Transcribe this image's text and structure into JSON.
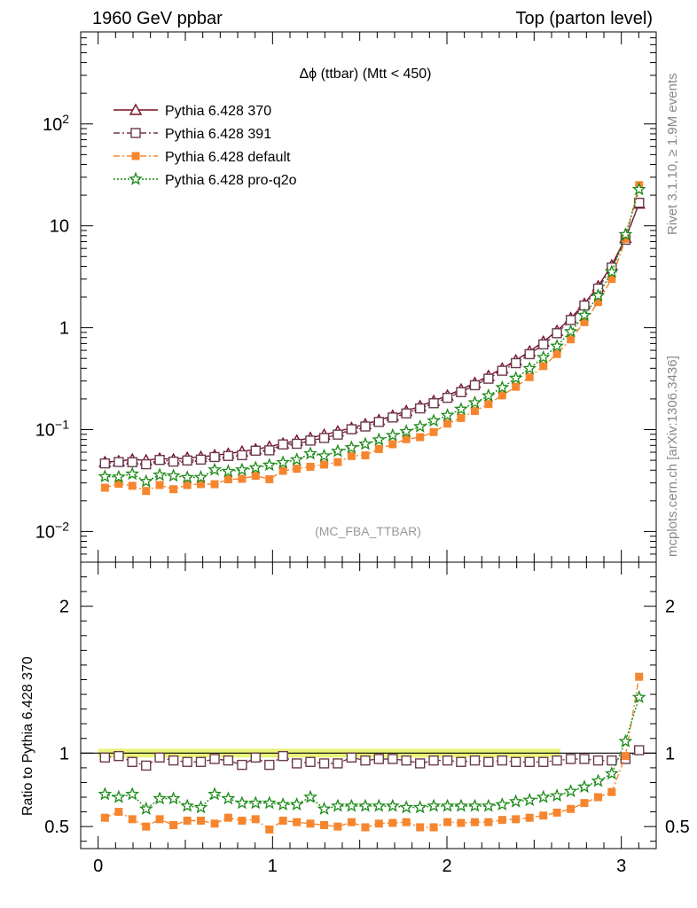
{
  "header": {
    "left": "1960 GeV ppbar",
    "right": "Top (parton level)"
  },
  "side_labels": {
    "rivet": "Rivet 3.1.10, ≥ 1.9M events",
    "mcplots": "mcplots.cern.ch [arXiv:1306.3436]"
  },
  "chart_data": [
    {
      "type": "line",
      "title": "Δϕ (ttbar) (Mtt < 450)",
      "watermark": "(MC_FBA_TTBAR)",
      "yscale": "log",
      "xlim": [
        -0.1,
        3.2
      ],
      "ylim": [
        0.005,
        800
      ],
      "y_tick_labels": [
        "10^-2",
        "10^-1",
        "1",
        "10",
        "10^2"
      ],
      "x": [
        0.039,
        0.118,
        0.196,
        0.275,
        0.353,
        0.432,
        0.511,
        0.589,
        0.668,
        0.746,
        0.825,
        0.903,
        0.982,
        1.06,
        1.139,
        1.217,
        1.296,
        1.374,
        1.453,
        1.532,
        1.61,
        1.689,
        1.767,
        1.846,
        1.924,
        2.003,
        2.081,
        2.16,
        2.238,
        2.317,
        2.395,
        2.474,
        2.553,
        2.631,
        2.71,
        2.788,
        2.867,
        2.945,
        3.024,
        3.102
      ],
      "series": [
        {
          "name": "Pythia 6.428 370",
          "color": "#7a0d24",
          "marker": "open-triangle",
          "line": "solid",
          "values": [
            0.048,
            0.049,
            0.051,
            0.05,
            0.052,
            0.051,
            0.053,
            0.054,
            0.056,
            0.058,
            0.061,
            0.064,
            0.068,
            0.073,
            0.078,
            0.083,
            0.089,
            0.096,
            0.104,
            0.113,
            0.124,
            0.137,
            0.152,
            0.17,
            0.191,
            0.216,
            0.248,
            0.287,
            0.336,
            0.398,
            0.478,
            0.585,
            0.73,
            0.93,
            1.24,
            1.72,
            2.55,
            4.1,
            7.6,
            16.5
          ]
        },
        {
          "name": "Pythia 6.428 391",
          "color": "#6b3a4f",
          "marker": "open-square",
          "line": "dashdot",
          "values": [
            0.0466,
            0.0481,
            0.0479,
            0.0457,
            0.0504,
            0.0485,
            0.0498,
            0.0508,
            0.0538,
            0.0551,
            0.0561,
            0.0621,
            0.0626,
            0.0716,
            0.0726,
            0.078,
            0.0828,
            0.0893,
            0.1009,
            0.1073,
            0.119,
            0.1315,
            0.1443,
            0.1615,
            0.1815,
            0.2052,
            0.2331,
            0.2727,
            0.3158,
            0.3781,
            0.4493,
            0.5499,
            0.6862,
            0.8835,
            1.1904,
            1.6512,
            2.4225,
            3.895,
            7.3,
            16.83
          ]
        },
        {
          "name": "Pythia 6.428 default",
          "color": "#f5862f",
          "marker": "filled-square",
          "line": "dashdot",
          "values": [
            0.0269,
            0.0294,
            0.0281,
            0.025,
            0.0286,
            0.026,
            0.0286,
            0.0292,
            0.0291,
            0.0325,
            0.0329,
            0.0352,
            0.0326,
            0.0394,
            0.0413,
            0.0432,
            0.0454,
            0.048,
            0.0551,
            0.0559,
            0.0645,
            0.0719,
            0.0806,
            0.0843,
            0.0946,
            0.1145,
            0.1302,
            0.1521,
            0.1781,
            0.2169,
            0.2636,
            0.3276,
            0.4205,
            0.552,
            0.7688,
            1.1352,
            1.785,
            3.0135,
            7.448,
            25.08
          ]
        },
        {
          "name": "Pythia 6.428 pro-q2o",
          "color": "#1b8a16",
          "marker": "open-star",
          "line": "dotted",
          "values": [
            0.0346,
            0.0343,
            0.0367,
            0.031,
            0.0359,
            0.0352,
            0.0339,
            0.034,
            0.0403,
            0.0389,
            0.0403,
            0.0422,
            0.0449,
            0.0475,
            0.0507,
            0.0581,
            0.0552,
            0.0614,
            0.0666,
            0.0722,
            0.0794,
            0.0877,
            0.0958,
            0.1071,
            0.1222,
            0.1382,
            0.1587,
            0.1837,
            0.215,
            0.2587,
            0.3202,
            0.3978,
            0.511,
            0.6603,
            0.9176,
            1.3244,
            2.0655,
            3.526,
            8.208,
            22.77
          ]
        }
      ]
    },
    {
      "type": "line",
      "ylabel": "Ratio to Pythia 6.428 370",
      "xlim": [
        -0.1,
        3.2
      ],
      "ylim": [
        0.35,
        2.3
      ],
      "x_tick_labels": [
        "0",
        "1",
        "2",
        "3"
      ],
      "y_tick_labels": [
        "0.5",
        "1",
        "2"
      ],
      "reference_band": {
        "name": "Pythia 6.428 370",
        "low": 0.97,
        "high": 1.03,
        "color": "#e8f57a"
      },
      "series": [
        {
          "name": "Pythia 6.428 391",
          "color": "#6b3a4f",
          "marker": "open-square",
          "line": "dashdot",
          "values": [
            0.97,
            0.98,
            0.94,
            0.915,
            0.97,
            0.95,
            0.94,
            0.94,
            0.96,
            0.95,
            0.92,
            0.97,
            0.92,
            0.98,
            0.93,
            0.94,
            0.93,
            0.93,
            0.97,
            0.95,
            0.96,
            0.96,
            0.95,
            0.93,
            0.95,
            0.95,
            0.94,
            0.95,
            0.94,
            0.95,
            0.94,
            0.94,
            0.94,
            0.95,
            0.96,
            0.96,
            0.95,
            0.95,
            0.96,
            1.02
          ]
        },
        {
          "name": "Pythia 6.428 default",
          "color": "#f5862f",
          "marker": "filled-square",
          "line": "dashdot",
          "values": [
            0.56,
            0.6,
            0.55,
            0.5,
            0.55,
            0.51,
            0.54,
            0.54,
            0.52,
            0.56,
            0.54,
            0.55,
            0.48,
            0.54,
            0.53,
            0.52,
            0.51,
            0.5,
            0.53,
            0.495,
            0.52,
            0.525,
            0.53,
            0.495,
            0.495,
            0.53,
            0.525,
            0.53,
            0.53,
            0.545,
            0.55,
            0.56,
            0.575,
            0.595,
            0.62,
            0.66,
            0.7,
            0.735,
            0.98,
            1.52
          ]
        },
        {
          "name": "Pythia 6.428 pro-q2o",
          "color": "#1b8a16",
          "marker": "open-star",
          "line": "dotted",
          "values": [
            0.72,
            0.7,
            0.72,
            0.62,
            0.69,
            0.69,
            0.64,
            0.63,
            0.72,
            0.69,
            0.66,
            0.66,
            0.66,
            0.65,
            0.65,
            0.7,
            0.62,
            0.64,
            0.64,
            0.64,
            0.64,
            0.64,
            0.63,
            0.63,
            0.64,
            0.64,
            0.64,
            0.64,
            0.64,
            0.65,
            0.67,
            0.68,
            0.7,
            0.71,
            0.74,
            0.77,
            0.81,
            0.86,
            1.08,
            1.38
          ]
        }
      ]
    }
  ]
}
